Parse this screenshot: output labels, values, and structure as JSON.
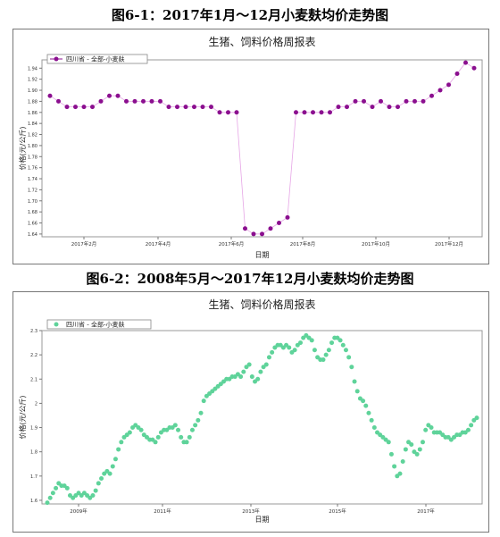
{
  "captions": {
    "fig1": "图6-1：2017年1月～12月小麦麸均价走势图",
    "fig2": "图6-2：2008年5月～2017年12月小麦麸均价走势图"
  },
  "chart_data": [
    {
      "type": "line",
      "title": "生猪、饲料价格周报表",
      "xlabel": "日期",
      "ylabel": "价格(元/公斤)",
      "legend_position": "top-left",
      "color": "#8b0f8f",
      "ylim": [
        1.635,
        1.955
      ],
      "yticks": [
        1.64,
        1.66,
        1.68,
        1.7,
        1.72,
        1.74,
        1.76,
        1.78,
        1.8,
        1.82,
        1.84,
        1.86,
        1.88,
        1.9,
        1.92,
        1.94
      ],
      "ytick_labels": [
        "1.64",
        "1.66",
        "1.68",
        "1.70",
        "1.72",
        "1.74",
        "1.76",
        "1.78",
        "1.80",
        "1.82",
        "1.84",
        "1.86",
        "1.88",
        "1.90",
        "1.92",
        "1.94"
      ],
      "xticks": [
        "2017年2月",
        "2017年4月",
        "2017年6月",
        "2017年8月",
        "2017年10月",
        "2017年12月"
      ],
      "series": [
        {
          "name": "四川省 - 全部-小麦麸",
          "values": [
            1.89,
            1.88,
            1.87,
            1.87,
            1.87,
            1.87,
            1.88,
            1.89,
            1.89,
            1.88,
            1.88,
            1.88,
            1.88,
            1.88,
            1.87,
            1.87,
            1.87,
            1.87,
            1.87,
            1.87,
            1.86,
            1.86,
            1.86,
            1.65,
            1.64,
            1.64,
            1.65,
            1.66,
            1.67,
            1.86,
            1.86,
            1.86,
            1.86,
            1.86,
            1.87,
            1.87,
            1.88,
            1.88,
            1.87,
            1.88,
            1.87,
            1.87,
            1.88,
            1.88,
            1.88,
            1.89,
            1.9,
            1.91,
            1.93,
            1.95,
            1.94
          ]
        }
      ]
    },
    {
      "type": "scatter",
      "title": "生猪、饲料价格周报表",
      "xlabel": "日期",
      "ylabel": "价格(元/公斤)",
      "legend_position": "top-left",
      "color": "#5fd39a",
      "ylim": [
        1.585,
        2.3
      ],
      "yticks": [
        1.6,
        1.7,
        1.8,
        1.9,
        2.0,
        2.1,
        2.2,
        2.3
      ],
      "ytick_labels": [
        "1.6",
        "1.7",
        "1.8",
        "1.9",
        "2",
        "2.1",
        "2.2",
        "2.3"
      ],
      "xticks": [
        "2009年",
        "2011年",
        "2013年",
        "2015年",
        "2017年"
      ],
      "series": [
        {
          "name": "四川省 - 全部-小麦麸",
          "values": [
            1.59,
            1.61,
            1.63,
            1.65,
            1.67,
            1.66,
            1.66,
            1.65,
            1.62,
            1.61,
            1.62,
            1.63,
            1.62,
            1.63,
            1.62,
            1.61,
            1.62,
            1.64,
            1.67,
            1.69,
            1.71,
            1.72,
            1.71,
            1.74,
            1.77,
            1.81,
            1.84,
            1.86,
            1.87,
            1.88,
            1.9,
            1.91,
            1.9,
            1.89,
            1.87,
            1.86,
            1.85,
            1.85,
            1.84,
            1.86,
            1.88,
            1.89,
            1.89,
            1.9,
            1.9,
            1.91,
            1.89,
            1.86,
            1.84,
            1.84,
            1.86,
            1.89,
            1.91,
            1.93,
            1.96,
            2.01,
            2.03,
            2.04,
            2.05,
            2.06,
            2.07,
            2.08,
            2.09,
            2.1,
            2.1,
            2.11,
            2.11,
            2.12,
            2.11,
            2.13,
            2.15,
            2.16,
            2.11,
            2.09,
            2.1,
            2.13,
            2.15,
            2.16,
            2.19,
            2.21,
            2.23,
            2.24,
            2.24,
            2.23,
            2.24,
            2.23,
            2.21,
            2.22,
            2.24,
            2.25,
            2.27,
            2.28,
            2.27,
            2.26,
            2.22,
            2.19,
            2.18,
            2.18,
            2.2,
            2.22,
            2.25,
            2.27,
            2.27,
            2.26,
            2.24,
            2.22,
            2.19,
            2.15,
            2.09,
            2.05,
            2.02,
            2.01,
            1.99,
            1.96,
            1.93,
            1.9,
            1.88,
            1.87,
            1.86,
            1.85,
            1.84,
            1.79,
            1.74,
            1.7,
            1.71,
            1.76,
            1.81,
            1.84,
            1.83,
            1.8,
            1.79,
            1.81,
            1.84,
            1.89,
            1.91,
            1.9,
            1.88,
            1.88,
            1.88,
            1.87,
            1.86,
            1.86,
            1.85,
            1.86,
            1.87,
            1.87,
            1.88,
            1.88,
            1.89,
            1.91,
            1.93,
            1.94
          ]
        }
      ]
    }
  ]
}
